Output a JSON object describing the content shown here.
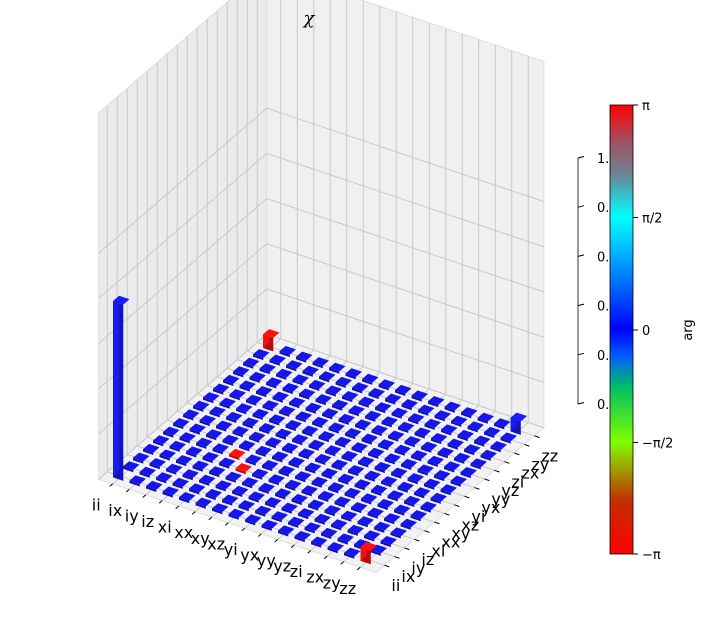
{
  "chart_data": {
    "type": "bar3d",
    "title": "χ",
    "x_tick_labels": [
      "ii",
      "ix",
      "iy",
      "iz",
      "xi",
      "xx",
      "xy",
      "xz",
      "yi",
      "yx",
      "yy",
      "yz",
      "zi",
      "zx",
      "zy",
      "zz"
    ],
    "y_tick_labels": [
      "ii",
      "ix",
      "iy",
      "iz",
      "xi",
      "xx",
      "xy",
      "xz",
      "yi",
      "yx",
      "yy",
      "yz",
      "zi",
      "zx",
      "zy",
      "zz"
    ],
    "z_ticks": [
      "0.0",
      "0.2",
      "0.4",
      "0.6",
      "0.8",
      "1.0"
    ],
    "z_range": [
      0,
      1
    ],
    "default_height": 0.01,
    "phase_colorscale_range": [
      "-π",
      "π"
    ],
    "bars": [
      {
        "x": "ii",
        "y": "ii",
        "height": 0.78,
        "phase": 0,
        "color": "#1a1aff"
      },
      {
        "x": "ii",
        "y": "zz",
        "height": 0.06,
        "phase": 3.14,
        "color": "#ff1010"
      },
      {
        "x": "zz",
        "y": "ii",
        "height": 0.06,
        "phase": 3.14,
        "color": "#ff1010"
      },
      {
        "x": "zz",
        "y": "zz",
        "height": 0.06,
        "phase": 0,
        "color": "#1a1aff"
      },
      {
        "x": "xi",
        "y": "xx",
        "height": 0.01,
        "phase": 3.14,
        "color": "#ff1010"
      },
      {
        "x": "xx",
        "y": "xi",
        "height": 0.01,
        "phase": 3.14,
        "color": "#ff1010"
      }
    ],
    "default_bar_color": "#1515ee",
    "colorbar": {
      "label": "arg",
      "ticks": [
        "π",
        "π/2",
        "0",
        "−π/2",
        "−π"
      ],
      "colors": [
        "#ff0000",
        "#a8554d",
        "#9c4fbb",
        "#00ffff",
        "#0055ff",
        "#0000ff",
        "#0055ff",
        "#55ff00",
        "#ff0000"
      ]
    }
  }
}
